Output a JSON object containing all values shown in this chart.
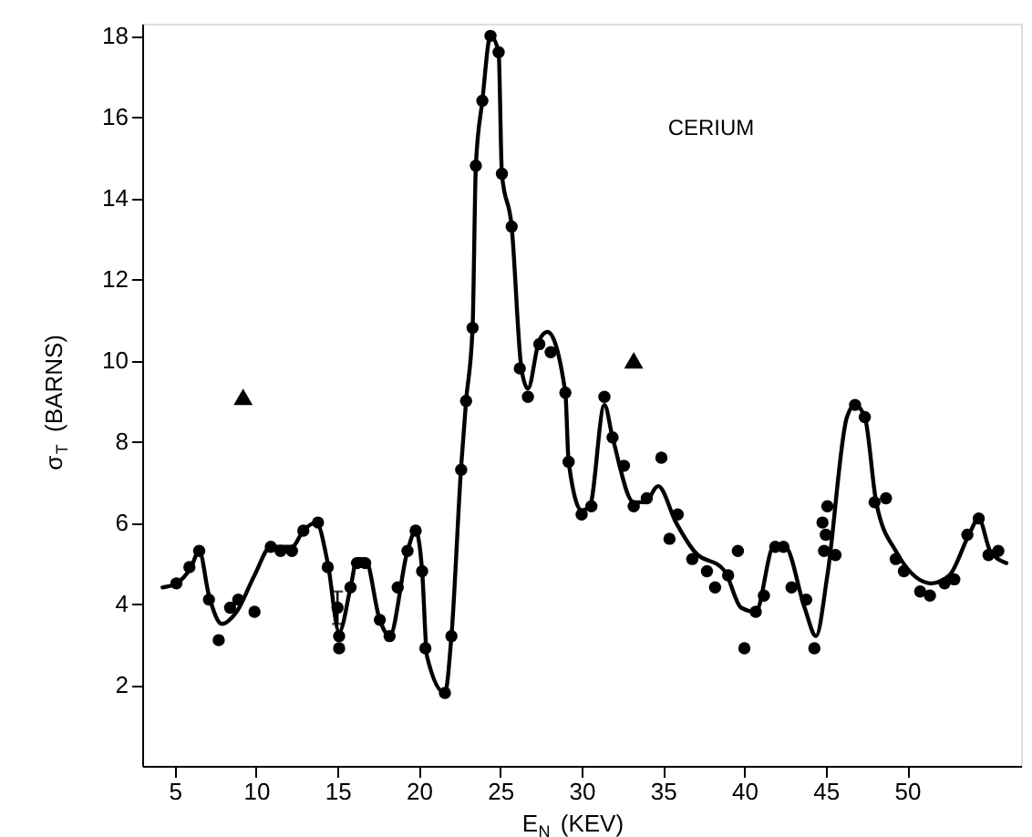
{
  "chart_data": {
    "type": "line",
    "xlabel": "E$_{N}$ (KEV)",
    "ylabel": "σ$_{T}$ (BARNS)",
    "annotations": [
      "CERIUM"
    ],
    "xlim": [
      3,
      57
    ],
    "xticks": [
      5,
      10,
      15,
      20,
      25,
      30,
      35,
      40,
      45,
      50
    ],
    "ylim": [
      0,
      18.3
    ],
    "yticks": [
      2,
      4,
      6,
      8,
      10,
      12,
      14,
      16,
      18
    ],
    "grid": false,
    "series": [
      {
        "color": "#000000",
        "line_style": "solid",
        "marker": "none",
        "x": [
          4.25,
          5.1,
          6.0,
          6.5,
          7.1,
          7.9,
          8.8,
          9.9,
          10.9,
          12.2,
          12.9,
          13.7,
          14.4,
          15.1,
          15.8,
          16.2,
          16.7,
          17.6,
          18.2,
          19.3,
          19.8,
          20.2,
          20.5,
          21.6,
          22.0,
          22.6,
          22.9,
          23.3,
          23.5,
          23.9,
          24.4,
          24.9,
          25.1,
          25.7,
          26.3,
          26.7,
          27.4,
          27.9,
          29.0,
          29.2,
          30.0,
          30.5,
          31.4,
          31.9,
          33.2,
          33.9,
          34.7,
          35.8,
          36.9,
          38.8,
          39.8,
          40.7,
          41.8,
          42.5,
          43.7,
          44.4,
          45.1,
          46.3,
          46.8,
          47.4,
          48.1,
          49.3,
          51.5,
          52.6,
          53.8,
          54.4,
          55.1,
          56.1
        ],
        "values": [
          4.4,
          4.5,
          4.9,
          5.3,
          4.2,
          3.5,
          3.8,
          4.7,
          5.4,
          5.4,
          5.8,
          6.0,
          5.0,
          3.3,
          4.4,
          5.1,
          5.1,
          3.6,
          3.2,
          5.3,
          5.8,
          4.8,
          2.7,
          1.8,
          3.2,
          7.4,
          9.0,
          10.8,
          14.8,
          16.4,
          18.0,
          17.6,
          14.6,
          13.3,
          9.8,
          9.3,
          10.5,
          10.7,
          9.2,
          7.5,
          6.3,
          6.4,
          8.9,
          8.1,
          6.5,
          6.5,
          6.9,
          6.0,
          5.3,
          4.8,
          3.9,
          3.8,
          5.4,
          5.4,
          3.9,
          3.2,
          4.7,
          8.6,
          8.9,
          8.6,
          6.5,
          5.3,
          4.5,
          4.7,
          5.7,
          6.1,
          5.3,
          5.0
        ]
      },
      {
        "type": "scatter",
        "color": "#000000",
        "marker": "circle",
        "x": [
          5.1,
          5.9,
          6.5,
          7.1,
          7.7,
          8.4,
          8.9,
          9.9,
          10.9,
          11.5,
          12.2,
          12.9,
          13.8,
          14.4,
          15.0,
          15.1,
          15.1,
          15.8,
          16.2,
          16.7,
          17.6,
          18.2,
          18.7,
          19.3,
          19.8,
          20.2,
          20.4,
          21.6,
          22.0,
          22.6,
          22.9,
          23.3,
          23.5,
          23.9,
          24.4,
          24.9,
          25.1,
          25.7,
          26.2,
          26.7,
          27.4,
          28.1,
          29.0,
          29.2,
          30.0,
          30.6,
          31.4,
          31.9,
          32.6,
          33.2,
          34.0,
          34.9,
          35.4,
          35.9,
          36.8,
          37.7,
          38.2,
          39.0,
          39.6,
          40.0,
          40.7,
          41.2,
          41.9,
          42.4,
          42.9,
          43.8,
          44.3,
          44.8,
          45.0,
          45.1,
          44.9,
          45.6,
          46.8,
          47.4,
          48.0,
          48.7,
          49.3,
          49.8,
          50.8,
          51.4,
          52.3,
          52.9,
          53.7,
          54.4,
          55.0,
          55.6
        ],
        "values": [
          4.5,
          4.9,
          5.3,
          4.1,
          3.1,
          3.9,
          4.1,
          3.8,
          5.4,
          5.3,
          5.3,
          5.8,
          6.0,
          4.9,
          3.9,
          3.2,
          2.9,
          4.4,
          5.0,
          5.0,
          3.6,
          3.2,
          4.4,
          5.3,
          5.8,
          4.8,
          2.9,
          1.8,
          3.2,
          7.3,
          9.0,
          10.8,
          14.8,
          16.4,
          18.0,
          17.6,
          14.6,
          13.3,
          9.8,
          9.1,
          10.4,
          10.2,
          9.2,
          7.5,
          6.2,
          6.4,
          9.1,
          8.1,
          7.4,
          6.4,
          6.6,
          7.6,
          5.6,
          6.2,
          5.1,
          4.8,
          4.4,
          4.7,
          5.3,
          2.9,
          3.8,
          4.2,
          5.4,
          5.4,
          4.4,
          4.1,
          2.9,
          6.0,
          5.7,
          6.4,
          5.3,
          5.2,
          8.9,
          8.6,
          6.5,
          6.6,
          5.1,
          4.8,
          4.3,
          4.2,
          4.5,
          4.6,
          5.7,
          6.1,
          5.2,
          5.3
        ],
        "errors": [
          null,
          null,
          null,
          null,
          null,
          null,
          null,
          null,
          null,
          null,
          null,
          null,
          null,
          null,
          0.4,
          null,
          null,
          null,
          null,
          null,
          null,
          null,
          null,
          null,
          null,
          null,
          null,
          null,
          null,
          null,
          null,
          null,
          null,
          null,
          null,
          null,
          null,
          null,
          null,
          null,
          null,
          null,
          null,
          null,
          null,
          null,
          null,
          null,
          null,
          null,
          null,
          null,
          null,
          null,
          null,
          null,
          null,
          null,
          null,
          null,
          null,
          null,
          null,
          null,
          null,
          null,
          null,
          null,
          null,
          null,
          null,
          null,
          null,
          null,
          null,
          null,
          null,
          null,
          null,
          null,
          null,
          null,
          null,
          null,
          null,
          null
        ]
      },
      {
        "type": "scatter",
        "color": "#000000",
        "marker": "triangle",
        "x": [
          9.2,
          33.2
        ],
        "values": [
          9.1,
          10.0
        ]
      }
    ]
  }
}
